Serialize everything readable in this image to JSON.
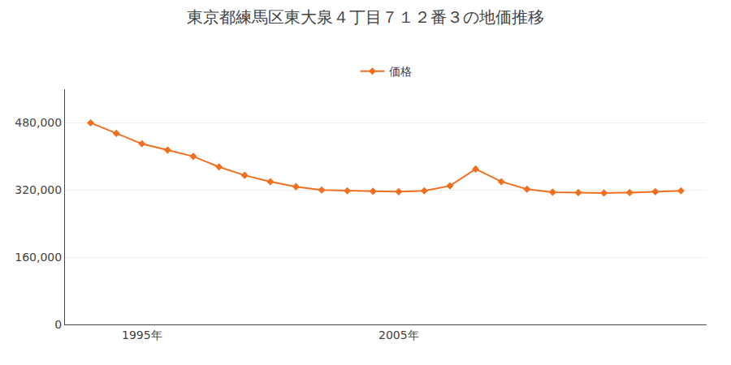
{
  "chart_data": {
    "type": "line",
    "title": "東京都練馬区東大泉４丁目７１２番３の地価推移",
    "x": [
      1993,
      1994,
      1995,
      1996,
      1997,
      1998,
      1999,
      2000,
      2001,
      2002,
      2003,
      2004,
      2005,
      2006,
      2007,
      2008,
      2009,
      2010,
      2011,
      2012,
      2013,
      2014,
      2015,
      2016
    ],
    "series": [
      {
        "name": "価格",
        "color": "#f07020",
        "marker": "diamond",
        "values": [
          480000,
          455000,
          430000,
          415000,
          400000,
          375000,
          355000,
          340000,
          328000,
          320000,
          318000,
          317000,
          316000,
          318000,
          330000,
          370000,
          340000,
          322000,
          315000,
          314000,
          313000,
          314000,
          316000,
          318000
        ]
      }
    ],
    "xlim": [
      1992,
      2017
    ],
    "xticks": [
      {
        "value": 1995,
        "label": "1995年"
      },
      {
        "value": 2005,
        "label": "2005年"
      }
    ],
    "ylim": [
      0,
      560000
    ],
    "yticks": [
      0,
      {
        "value": 160000,
        "label": "160,000"
      },
      {
        "value": 320000,
        "label": "320,000"
      },
      {
        "value": 480000,
        "label": "480,000"
      }
    ],
    "grid": "y",
    "legend": "top"
  }
}
